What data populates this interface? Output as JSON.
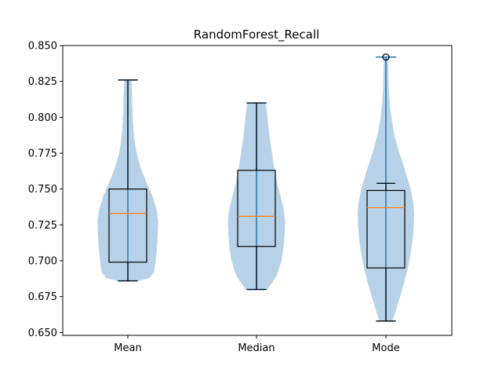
{
  "chart_data": {
    "type": "violin+box",
    "title": "RandomForest_Recall",
    "xlabel": "",
    "ylabel": "",
    "ylim": [
      0.648,
      0.85
    ],
    "yticks": [
      0.65,
      0.675,
      0.7,
      0.725,
      0.75,
      0.775,
      0.8,
      0.825,
      0.85
    ],
    "ytick_labels": [
      "0.650",
      "0.675",
      "0.700",
      "0.725",
      "0.750",
      "0.775",
      "0.800",
      "0.825",
      "0.850"
    ],
    "categories": [
      "Mean",
      "Median",
      "Mode"
    ],
    "grid": false,
    "colors": {
      "violin_fill": "#b7d2e8",
      "violin_line": "#1f77b4",
      "box": "#000000",
      "median": "#ff7f0e"
    },
    "series": [
      {
        "category": "Mean",
        "min": 0.686,
        "q1": 0.699,
        "median": 0.733,
        "q3": 0.75,
        "max": 0.826,
        "box_whisker_low": 0.686,
        "box_whisker_high": 0.826,
        "outliers": [],
        "violin_profile": [
          [
            0.686,
            0.3
          ],
          [
            0.688,
            0.62
          ],
          [
            0.692,
            0.74
          ],
          [
            0.7,
            0.79
          ],
          [
            0.71,
            0.83
          ],
          [
            0.72,
            0.85
          ],
          [
            0.728,
            0.86
          ],
          [
            0.735,
            0.82
          ],
          [
            0.745,
            0.7
          ],
          [
            0.755,
            0.52
          ],
          [
            0.765,
            0.36
          ],
          [
            0.775,
            0.25
          ],
          [
            0.785,
            0.18
          ],
          [
            0.795,
            0.15
          ],
          [
            0.805,
            0.13
          ],
          [
            0.815,
            0.12
          ],
          [
            0.826,
            0.1
          ]
        ]
      },
      {
        "category": "Median",
        "min": 0.68,
        "q1": 0.71,
        "median": 0.731,
        "q3": 0.763,
        "max": 0.81,
        "box_whisker_low": 0.68,
        "box_whisker_high": 0.81,
        "outliers": [],
        "violin_profile": [
          [
            0.68,
            0.3
          ],
          [
            0.685,
            0.45
          ],
          [
            0.69,
            0.58
          ],
          [
            0.7,
            0.71
          ],
          [
            0.71,
            0.77
          ],
          [
            0.72,
            0.8
          ],
          [
            0.728,
            0.81
          ],
          [
            0.735,
            0.78
          ],
          [
            0.745,
            0.68
          ],
          [
            0.755,
            0.58
          ],
          [
            0.765,
            0.5
          ],
          [
            0.775,
            0.44
          ],
          [
            0.785,
            0.38
          ],
          [
            0.795,
            0.33
          ],
          [
            0.803,
            0.3
          ],
          [
            0.81,
            0.26
          ]
        ]
      },
      {
        "category": "Mode",
        "min": 0.658,
        "q1": 0.695,
        "median": 0.737,
        "q3": 0.749,
        "max": 0.754,
        "box_whisker_low": 0.658,
        "box_whisker_high": 0.754,
        "outliers": [
          0.842
        ],
        "violin_profile": [
          [
            0.658,
            0.18
          ],
          [
            0.665,
            0.28
          ],
          [
            0.675,
            0.4
          ],
          [
            0.685,
            0.52
          ],
          [
            0.695,
            0.62
          ],
          [
            0.705,
            0.7
          ],
          [
            0.715,
            0.76
          ],
          [
            0.725,
            0.79
          ],
          [
            0.733,
            0.8
          ],
          [
            0.74,
            0.78
          ],
          [
            0.75,
            0.7
          ],
          [
            0.76,
            0.58
          ],
          [
            0.77,
            0.45
          ],
          [
            0.78,
            0.32
          ],
          [
            0.79,
            0.22
          ],
          [
            0.8,
            0.15
          ],
          [
            0.81,
            0.11
          ],
          [
            0.82,
            0.08
          ],
          [
            0.83,
            0.07
          ],
          [
            0.842,
            0.06
          ]
        ]
      }
    ]
  }
}
